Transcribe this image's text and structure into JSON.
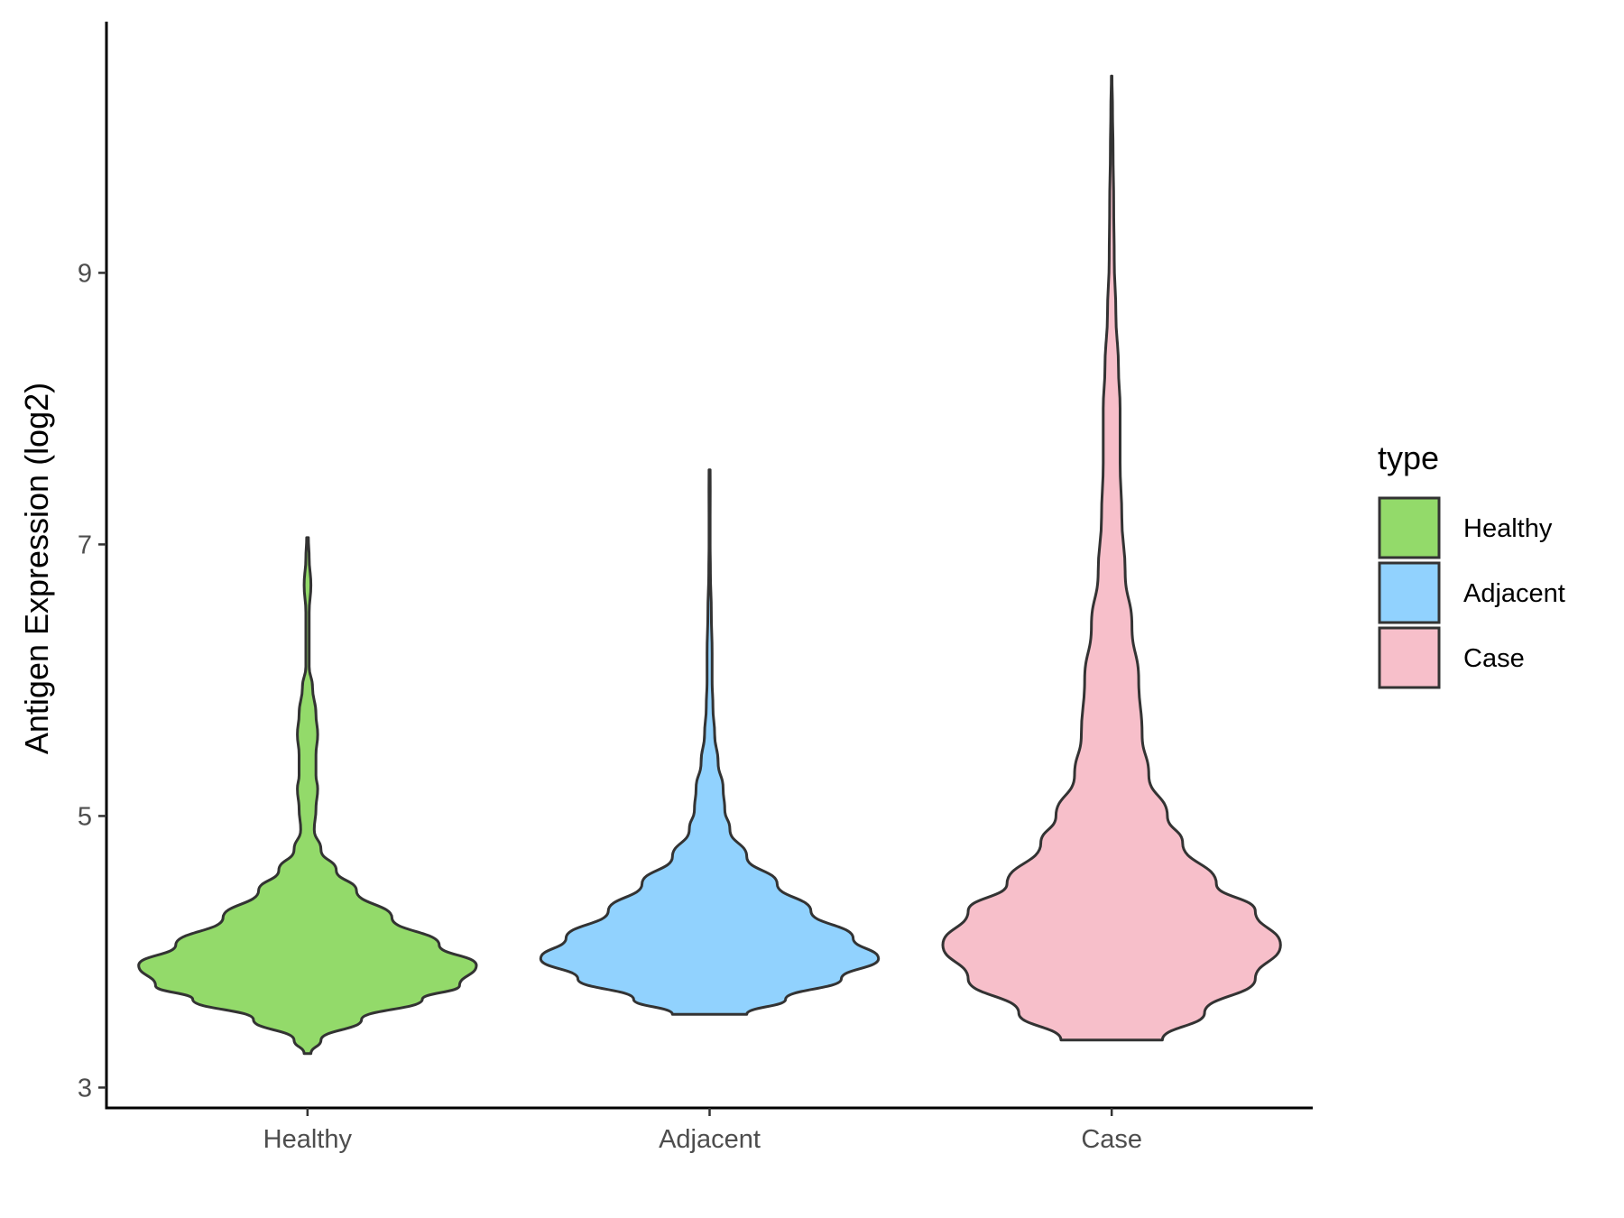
{
  "chart_data": {
    "type": "violin",
    "title": "",
    "xlabel": "",
    "ylabel": "Antigen Expression (log2)",
    "categories": [
      "Healthy",
      "Adjacent",
      "Case"
    ],
    "ylim": [
      2.85,
      10.85
    ],
    "yticks": [
      3,
      5,
      7,
      9
    ],
    "grid": false,
    "legend": {
      "title": "type",
      "position": "right",
      "entries": [
        {
          "label": "Healthy",
          "color": "#93DA6A"
        },
        {
          "label": "Adjacent",
          "color": "#91D2FE"
        },
        {
          "label": "Case",
          "color": "#F7BFCA"
        }
      ]
    },
    "series": [
      {
        "category": "Healthy",
        "color": "#93DA6A",
        "min": 3.25,
        "max": 7.05,
        "density_profile": [
          [
            3.25,
            0.02
          ],
          [
            3.35,
            0.08
          ],
          [
            3.5,
            0.32
          ],
          [
            3.65,
            0.68
          ],
          [
            3.75,
            0.9
          ],
          [
            3.9,
            1.0
          ],
          [
            4.05,
            0.78
          ],
          [
            4.25,
            0.5
          ],
          [
            4.45,
            0.29
          ],
          [
            4.6,
            0.17
          ],
          [
            4.75,
            0.08
          ],
          [
            4.9,
            0.04
          ],
          [
            5.05,
            0.05
          ],
          [
            5.2,
            0.06
          ],
          [
            5.3,
            0.05
          ],
          [
            5.45,
            0.05
          ],
          [
            5.6,
            0.06
          ],
          [
            5.75,
            0.05
          ],
          [
            5.95,
            0.03
          ],
          [
            6.1,
            0.01
          ],
          [
            6.3,
            0.01
          ],
          [
            6.5,
            0.01
          ],
          [
            6.7,
            0.02
          ],
          [
            6.9,
            0.01
          ],
          [
            7.05,
            0.005
          ]
        ]
      },
      {
        "category": "Adjacent",
        "color": "#91D2FE",
        "min": 3.54,
        "max": 7.55,
        "density_profile": [
          [
            3.54,
            0.22
          ],
          [
            3.65,
            0.45
          ],
          [
            3.8,
            0.78
          ],
          [
            3.95,
            1.0
          ],
          [
            4.1,
            0.85
          ],
          [
            4.3,
            0.6
          ],
          [
            4.5,
            0.4
          ],
          [
            4.7,
            0.22
          ],
          [
            4.9,
            0.12
          ],
          [
            5.05,
            0.09
          ],
          [
            5.2,
            0.08
          ],
          [
            5.4,
            0.05
          ],
          [
            5.6,
            0.03
          ],
          [
            5.8,
            0.02
          ],
          [
            6.0,
            0.015
          ],
          [
            6.2,
            0.015
          ],
          [
            6.5,
            0.01
          ],
          [
            6.8,
            0.005
          ],
          [
            7.0,
            0.003
          ],
          [
            7.2,
            0.003
          ],
          [
            7.4,
            0.004
          ],
          [
            7.55,
            0.003
          ]
        ]
      },
      {
        "category": "Case",
        "color": "#F7BFCA",
        "min": 3.35,
        "max": 10.45,
        "density_profile": [
          [
            3.35,
            0.3
          ],
          [
            3.55,
            0.55
          ],
          [
            3.8,
            0.85
          ],
          [
            4.05,
            1.0
          ],
          [
            4.3,
            0.85
          ],
          [
            4.5,
            0.62
          ],
          [
            4.8,
            0.42
          ],
          [
            5.0,
            0.33
          ],
          [
            5.3,
            0.22
          ],
          [
            5.6,
            0.18
          ],
          [
            6.0,
            0.16
          ],
          [
            6.4,
            0.12
          ],
          [
            6.8,
            0.08
          ],
          [
            7.2,
            0.06
          ],
          [
            7.6,
            0.05
          ],
          [
            8.0,
            0.05
          ],
          [
            8.3,
            0.04
          ],
          [
            8.7,
            0.025
          ],
          [
            9.1,
            0.015
          ],
          [
            9.5,
            0.012
          ],
          [
            9.9,
            0.008
          ],
          [
            10.2,
            0.005
          ],
          [
            10.45,
            0.002
          ]
        ]
      }
    ]
  }
}
